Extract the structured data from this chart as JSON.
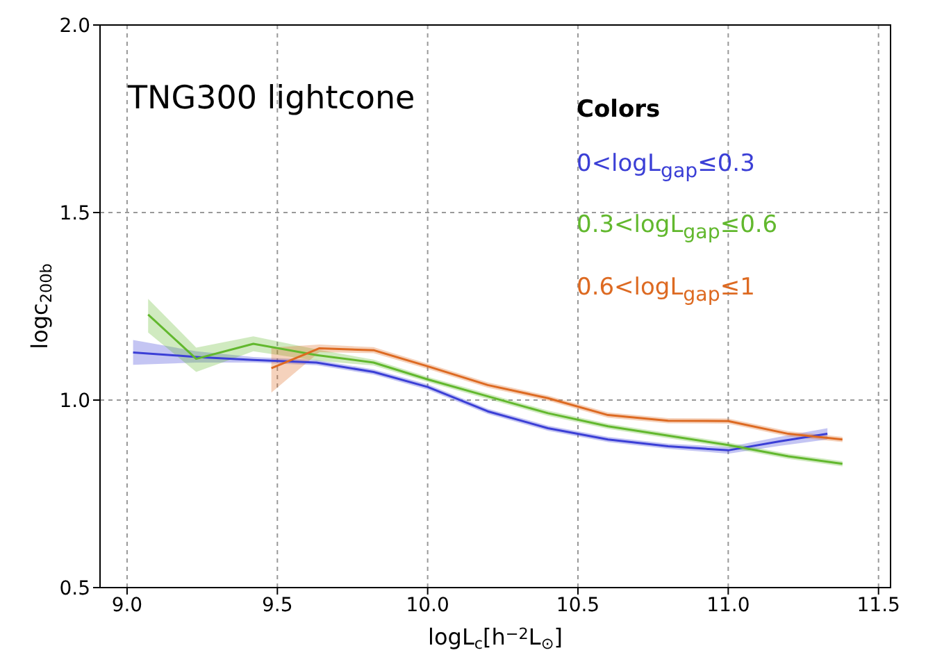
{
  "chart_data": {
    "type": "line",
    "title": "TNG300 lightcone",
    "xlabel": "logL$_{c}$[h$^{−2}$L$_{⊙}$]",
    "ylabel": "logc$_{200b}$",
    "legend_title": "Colors",
    "legend": "top right",
    "grid": true,
    "marker": "none",
    "line_style": "solid",
    "xlim": [
      8.91,
      11.54
    ],
    "xticks": [
      {
        "value": 9,
        "label": "9.0"
      },
      9.5,
      {
        "value": 10,
        "label": "10.0"
      },
      10.5,
      {
        "value": 11,
        "label": "11.0"
      },
      11.5
    ],
    "ylim": [
      0.5,
      2.0
    ],
    "yticks": [
      0.5,
      {
        "value": 1,
        "label": "1.0"
      },
      1.5,
      {
        "value": 2,
        "label": "2.0"
      }
    ],
    "series": [
      {
        "name": "0<logL$_{gap}$≤0.3",
        "color": "#3b3fd6",
        "x": [
          9.02,
          9.23,
          9.42,
          9.63,
          9.82,
          10.0,
          10.2,
          10.4,
          10.6,
          10.8,
          11.0,
          11.17,
          11.33
        ],
        "values": [
          1.127,
          1.115,
          1.107,
          1.1,
          1.075,
          1.035,
          0.97,
          0.925,
          0.895,
          0.877,
          0.866,
          0.89,
          0.91
        ],
        "lower": [
          1.094,
          1.1,
          1.1,
          1.093,
          1.068,
          1.028,
          0.963,
          0.918,
          0.888,
          0.87,
          0.857,
          0.878,
          0.895
        ],
        "upper": [
          1.16,
          1.13,
          1.115,
          1.107,
          1.082,
          1.042,
          0.977,
          0.932,
          0.902,
          0.884,
          0.875,
          0.902,
          0.925
        ]
      },
      {
        "name": "0.3<logL$_{gap}$≤0.6",
        "color": "#62b82e",
        "x": [
          9.07,
          9.23,
          9.42,
          9.63,
          9.82,
          10.0,
          10.2,
          10.4,
          10.6,
          10.8,
          11.0,
          11.2,
          11.38
        ],
        "values": [
          1.228,
          1.11,
          1.15,
          1.12,
          1.1,
          1.055,
          1.01,
          0.965,
          0.93,
          0.905,
          0.88,
          0.85,
          0.83
        ],
        "lower": [
          1.18,
          1.075,
          1.13,
          1.105,
          1.092,
          1.048,
          1.003,
          0.958,
          0.923,
          0.898,
          0.873,
          0.843,
          0.823
        ],
        "upper": [
          1.27,
          1.14,
          1.17,
          1.135,
          1.108,
          1.062,
          1.017,
          0.972,
          0.937,
          0.912,
          0.887,
          0.857,
          0.837
        ]
      },
      {
        "name": "0.6<logL$_{gap}$≤1",
        "color": "#dd6a22",
        "x": [
          9.48,
          9.64,
          9.82,
          10.0,
          10.2,
          10.4,
          10.6,
          10.8,
          11.0,
          11.2,
          11.38
        ],
        "values": [
          1.085,
          1.138,
          1.133,
          1.09,
          1.04,
          1.005,
          0.96,
          0.945,
          0.944,
          0.91,
          0.895
        ],
        "lower": [
          1.02,
          1.128,
          1.125,
          1.083,
          1.033,
          0.998,
          0.953,
          0.938,
          0.937,
          0.903,
          0.888
        ],
        "upper": [
          1.14,
          1.148,
          1.141,
          1.097,
          1.047,
          1.012,
          0.967,
          0.952,
          0.951,
          0.917,
          0.902
        ]
      }
    ]
  }
}
